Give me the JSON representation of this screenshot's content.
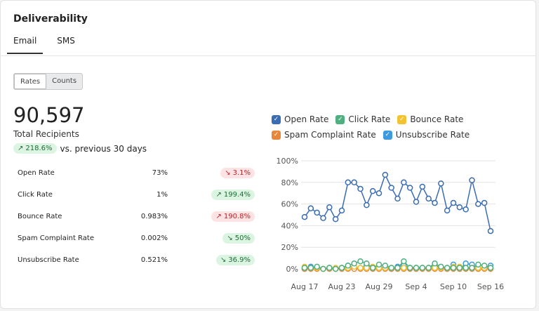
{
  "header": {
    "title": "Deliverability",
    "tabs": [
      {
        "label": "Email",
        "active": true
      },
      {
        "label": "SMS",
        "active": false
      }
    ]
  },
  "toggle": {
    "options": [
      "Rates",
      "Counts"
    ],
    "selected": "Rates"
  },
  "summary": {
    "total": "90,597",
    "total_label": "Total Recipients",
    "change": "218.6%",
    "change_direction": "up",
    "change_label": "vs. previous 30 days"
  },
  "metrics": [
    {
      "label": "Open Rate",
      "value": "73%",
      "change": "3.1%",
      "direction": "down",
      "sentiment": "bad"
    },
    {
      "label": "Click Rate",
      "value": "1%",
      "change": "199.4%",
      "direction": "up",
      "sentiment": "good"
    },
    {
      "label": "Bounce Rate",
      "value": "0.983%",
      "change": "190.8%",
      "direction": "up",
      "sentiment": "bad"
    },
    {
      "label": "Spam Complaint Rate",
      "value": "0.002%",
      "change": "50%",
      "direction": "down",
      "sentiment": "good"
    },
    {
      "label": "Unsubscribe Rate",
      "value": "0.521%",
      "change": "36.9%",
      "direction": "down",
      "sentiment": "good"
    }
  ],
  "chart_data": {
    "type": "line",
    "x": [
      "Aug 17",
      "Aug 18",
      "Aug 19",
      "Aug 20",
      "Aug 21",
      "Aug 22",
      "Aug 23",
      "Aug 24",
      "Aug 25",
      "Aug 26",
      "Aug 27",
      "Aug 28",
      "Aug 29",
      "Aug 30",
      "Aug 31",
      "Sep 1",
      "Sep 2",
      "Sep 3",
      "Sep 4",
      "Sep 5",
      "Sep 6",
      "Sep 7",
      "Sep 8",
      "Sep 9",
      "Sep 10",
      "Sep 11",
      "Sep 12",
      "Sep 13",
      "Sep 14",
      "Sep 15",
      "Sep 16"
    ],
    "xticks": [
      "Aug 17",
      "Aug 23",
      "Aug 29",
      "Sep 4",
      "Sep 10",
      "Sep 16"
    ],
    "yticks": [
      "0%",
      "20%",
      "40%",
      "60%",
      "80%",
      "100%"
    ],
    "ylim": [
      0,
      100
    ],
    "grid": true,
    "legend": "top",
    "series": [
      {
        "name": "Open Rate",
        "color": "#3a6cb4",
        "values": [
          48,
          56,
          52,
          47,
          57,
          46,
          54,
          80,
          80,
          74,
          59,
          72,
          70,
          87,
          75,
          65,
          80,
          75,
          62,
          76,
          65,
          61,
          79,
          54,
          61,
          57,
          55,
          82,
          60,
          61,
          35
        ]
      },
      {
        "name": "Click Rate",
        "color": "#4fb07f",
        "values": [
          1,
          1,
          2,
          0,
          1,
          0,
          1,
          3,
          5,
          7,
          5,
          1,
          4,
          3,
          1,
          1,
          7,
          1,
          1,
          1,
          1,
          5,
          2,
          1,
          1,
          1,
          1,
          1,
          4,
          3,
          1
        ]
      },
      {
        "name": "Bounce Rate",
        "color": "#f2c230",
        "values": [
          2,
          1,
          1,
          0,
          1,
          1,
          1,
          1,
          2,
          1,
          1,
          2,
          1,
          1,
          1,
          1,
          1,
          1,
          1,
          1,
          1,
          1,
          1,
          1,
          2,
          2,
          1,
          1,
          1,
          1,
          1
        ]
      },
      {
        "name": "Spam Complaint Rate",
        "color": "#e8873a",
        "values": [
          0,
          0,
          0,
          0,
          0,
          0,
          0,
          0,
          0,
          0,
          0,
          0,
          0,
          0,
          0,
          0,
          0,
          0,
          0,
          0,
          0,
          0,
          0,
          0,
          0,
          0,
          0,
          0,
          0,
          0,
          0
        ]
      },
      {
        "name": "Unsubscribe Rate",
        "color": "#3c9ae0",
        "values": [
          0,
          2,
          1,
          0,
          1,
          0,
          1,
          3,
          1,
          1,
          3,
          1,
          2,
          1,
          0,
          2,
          3,
          1,
          1,
          1,
          1,
          3,
          1,
          0,
          4,
          0,
          5,
          4,
          0,
          1,
          3
        ]
      }
    ]
  }
}
